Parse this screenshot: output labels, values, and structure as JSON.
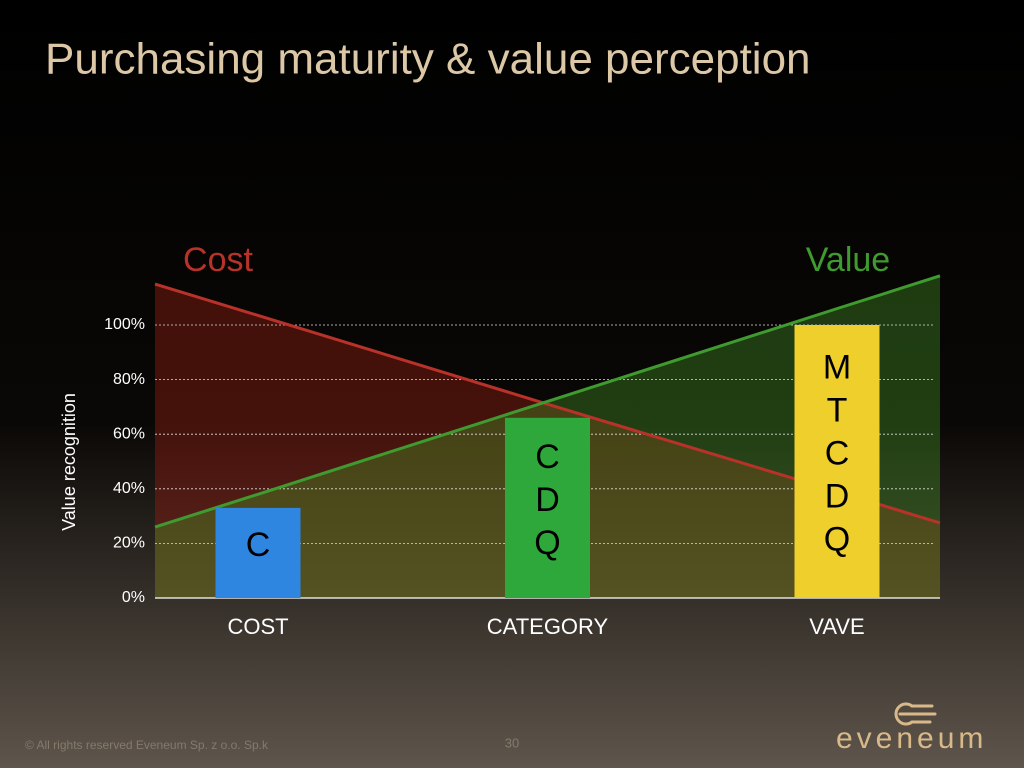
{
  "chart_data": {
    "type": "bar",
    "title": "Purchasing maturity & value perception",
    "y_label": "Value recognition",
    "categories": [
      null,
      "COST",
      "CATEGORY",
      "VAVE",
      null
    ],
    "values": [
      null,
      33,
      66,
      100,
      null
    ],
    "bar_labels": [
      null,
      [
        "C"
      ],
      [
        "C",
        "D",
        "Q"
      ],
      [
        "M",
        "T",
        "C",
        "D",
        "Q"
      ],
      null
    ],
    "bar_colors": [
      null,
      "#2f86e0",
      "#2ea83a",
      "#efcf2c",
      null
    ],
    "series": [
      {
        "name": "Cost",
        "color": "#b8322a",
        "values": [
          115,
          103.5,
          71,
          39,
          27.5
        ]
      },
      {
        "name": "Value",
        "color": "#3f9a2f",
        "values": [
          26,
          38,
          72,
          106,
          118
        ]
      }
    ],
    "ylim": [
      0,
      120
    ],
    "yticks": [
      {
        "value": 0,
        "label": "0%"
      },
      {
        "value": 20,
        "label": "20%"
      },
      {
        "value": 40,
        "label": "40%"
      },
      {
        "value": 60,
        "label": "60%"
      },
      {
        "value": 80,
        "label": "80%"
      },
      {
        "value": 100,
        "label": "100%"
      }
    ],
    "grid": true
  },
  "footer": {
    "copyright": "©  All rights reserved Eveneum Sp. z o.o. Sp.k",
    "page_number": "30",
    "logo": "eveneum"
  }
}
